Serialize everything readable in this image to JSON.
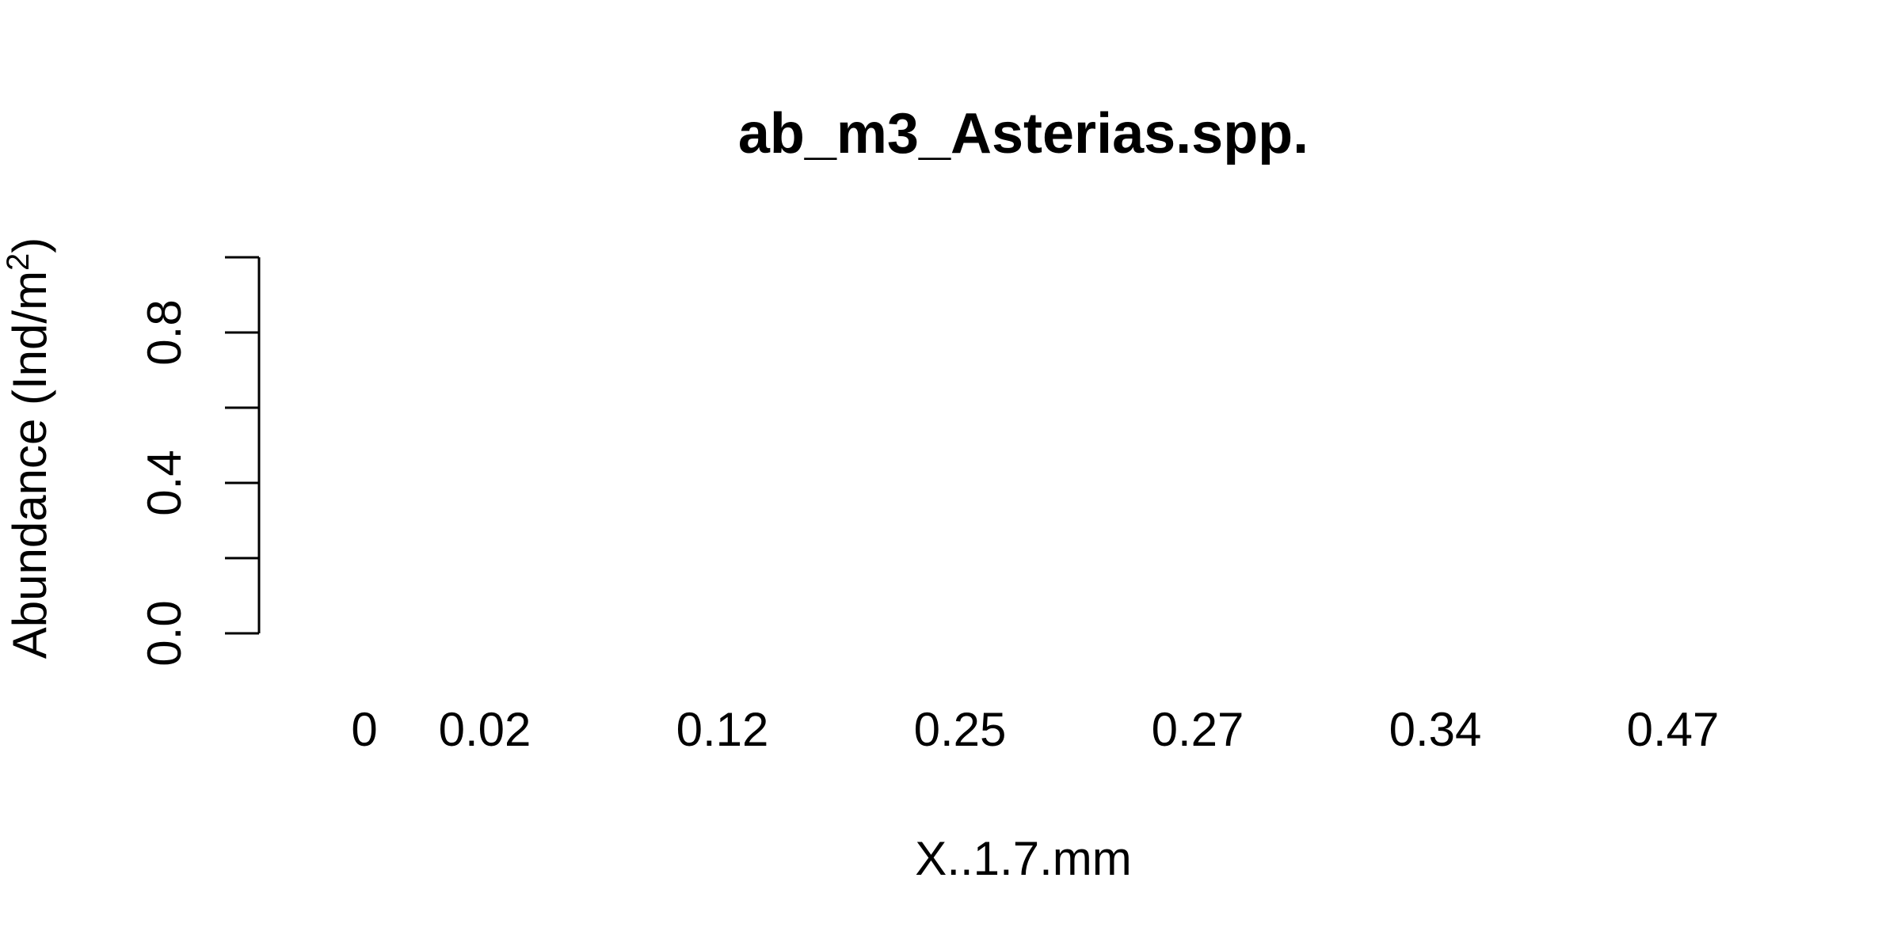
{
  "chart_data": {
    "type": "bar",
    "title": "ab_m3_Asterias.spp.",
    "xlabel": "X..1.7.mm",
    "ylabel": "Abundance (Ind/m",
    "ylabel_superscript": "2",
    "ylabel_suffix": ")",
    "categories": [
      "0",
      "0.02",
      "0.12",
      "0.25",
      "0.27",
      "0.34",
      "0.47"
    ],
    "values": [
      0,
      0,
      0,
      0,
      0,
      0,
      0
    ],
    "ylim": [
      0,
      1
    ],
    "yticks": [
      0,
      0.2,
      0.4,
      0.6,
      0.8,
      1.0
    ],
    "ytick_labels": [
      "0.0",
      "",
      "0.4",
      "",
      "0.8",
      ""
    ],
    "grid": false,
    "legend": "none"
  }
}
